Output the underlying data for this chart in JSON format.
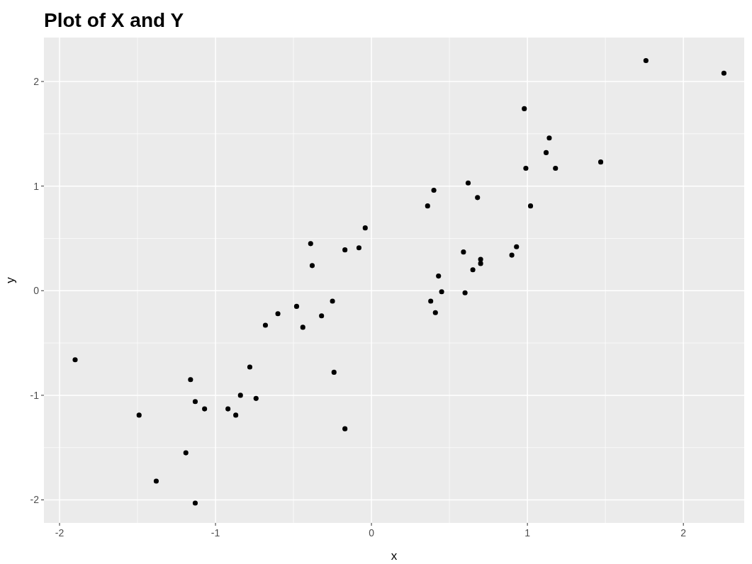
{
  "chart_data": {
    "type": "scatter",
    "title": "Plot of X and Y",
    "xlabel": "x",
    "ylabel": "y",
    "xlim": [
      -2.1,
      2.39
    ],
    "ylim": [
      -2.22,
      2.42
    ],
    "xticks": [
      -2,
      -1,
      0,
      1,
      2
    ],
    "yticks": [
      -2,
      -1,
      0,
      1,
      2
    ],
    "grid": true,
    "marker": "circle",
    "series": [
      {
        "color": "#000000",
        "x": [
          -1.9,
          -1.49,
          -1.38,
          -1.19,
          -1.16,
          -1.13,
          -1.13,
          -1.07,
          -0.92,
          -0.87,
          -0.84,
          -0.78,
          -0.74,
          -0.68,
          -0.6,
          -0.48,
          -0.44,
          -0.39,
          -0.38,
          -0.32,
          -0.25,
          -0.24,
          -0.17,
          -0.17,
          -0.08,
          -0.04,
          0.36,
          0.4,
          0.38,
          0.41,
          0.43,
          0.45,
          0.59,
          0.6,
          0.62,
          0.65,
          0.68,
          0.7,
          0.7,
          0.9,
          0.93,
          0.98,
          0.99,
          1.02,
          1.12,
          1.14,
          1.18,
          1.47,
          1.76,
          2.26
        ],
        "values": [
          -0.66,
          -1.19,
          -1.82,
          -1.55,
          -0.85,
          -1.06,
          -2.03,
          -1.13,
          -1.13,
          -1.19,
          -1.0,
          -0.73,
          -1.03,
          -0.33,
          -0.22,
          -0.15,
          -0.35,
          0.45,
          0.24,
          -0.24,
          -0.1,
          -0.78,
          0.39,
          -1.32,
          0.41,
          0.6,
          0.81,
          0.96,
          -0.1,
          -0.21,
          0.14,
          -0.01,
          0.37,
          -0.02,
          1.03,
          0.2,
          0.89,
          0.3,
          0.26,
          0.34,
          0.42,
          1.74,
          1.17,
          0.81,
          1.32,
          1.46,
          1.17,
          1.23,
          2.2,
          2.08
        ]
      }
    ]
  }
}
